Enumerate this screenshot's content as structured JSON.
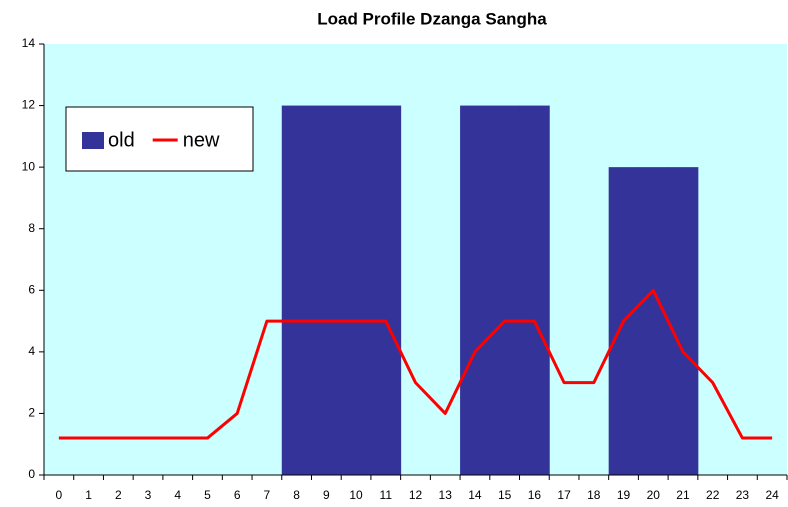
{
  "chart_data": {
    "type": "bar_line",
    "title": "Load Profile Dzanga Sangha",
    "categories": [
      "0",
      "1",
      "2",
      "3",
      "4",
      "5",
      "6",
      "7",
      "8",
      "9",
      "10",
      "11",
      "12",
      "13",
      "14",
      "15",
      "16",
      "17",
      "18",
      "19",
      "20",
      "21",
      "22",
      "23",
      "24"
    ],
    "series": [
      {
        "name": "old",
        "type": "bar",
        "color": "#333399",
        "values": [
          0,
          0,
          0,
          0,
          0,
          0,
          0,
          0,
          12,
          12,
          12,
          12,
          0,
          0,
          12,
          12,
          12,
          0,
          0,
          10,
          10,
          10,
          0,
          0,
          0
        ]
      },
      {
        "name": "new",
        "type": "line",
        "color": "#ff0000",
        "values": [
          1.2,
          1.2,
          1.2,
          1.2,
          1.2,
          1.2,
          2,
          5,
          5,
          5,
          5,
          5,
          3,
          2,
          4,
          5,
          5,
          3,
          3,
          5,
          6,
          4,
          3,
          1.2,
          1.2
        ]
      }
    ],
    "ylim": [
      0,
      14
    ],
    "yticks": [
      0,
      2,
      4,
      6,
      8,
      10,
      12,
      14
    ],
    "plot_background": "#ccffff",
    "legend": "upper left"
  }
}
